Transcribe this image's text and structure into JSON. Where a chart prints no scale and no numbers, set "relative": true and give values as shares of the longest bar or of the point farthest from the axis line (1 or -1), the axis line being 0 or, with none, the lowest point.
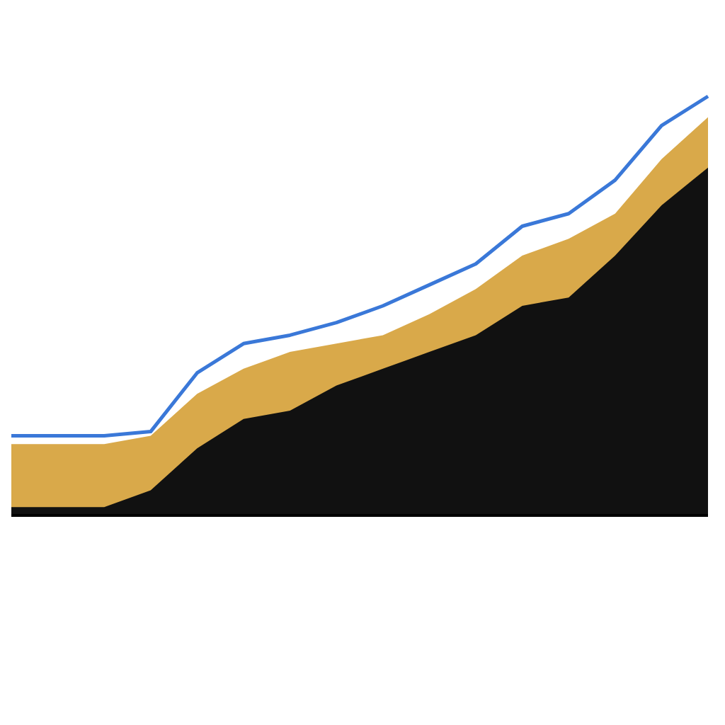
{
  "chart_data": {
    "type": "area",
    "relative": true,
    "categories": [
      null,
      null,
      null,
      null,
      null,
      null,
      null,
      null,
      null,
      null,
      null,
      null,
      null,
      null,
      null,
      null
    ],
    "series": [
      {
        "color": "#d9a94a",
        "values": [
          0.17,
          0.17,
          0.17,
          0.19,
          0.29,
          0.35,
          0.39,
          0.41,
          0.43,
          0.48,
          0.54,
          0.62,
          0.66,
          0.72,
          0.85,
          0.95
        ]
      },
      {
        "color": "#111111",
        "values": [
          0.02,
          0.02,
          0.02,
          0.06,
          0.16,
          0.23,
          0.25,
          0.31,
          0.35,
          0.39,
          0.43,
          0.5,
          0.52,
          0.62,
          0.74,
          0.83
        ]
      },
      {
        "type": "line",
        "color": "#3a78d8",
        "values": [
          0.19,
          0.19,
          0.19,
          0.2,
          0.34,
          0.41,
          0.43,
          0.46,
          0.5,
          0.55,
          0.6,
          0.69,
          0.72,
          0.8,
          0.93,
          1
        ]
      }
    ]
  }
}
